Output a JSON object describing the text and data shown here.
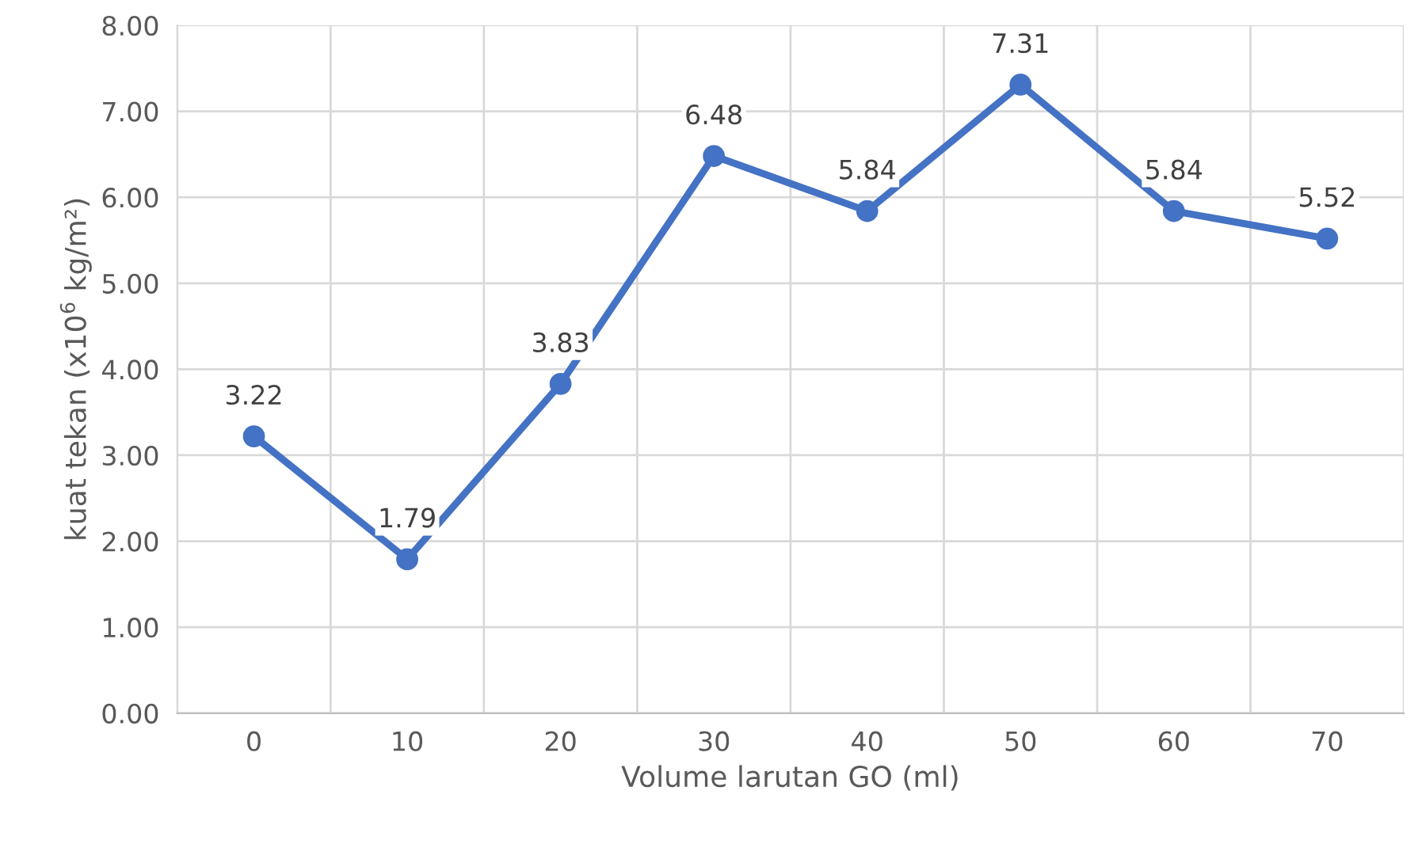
{
  "chart_data": {
    "type": "line",
    "xlabel": "Volume larutan GO (ml)",
    "ylabel": "kuat tekan (x10$^{6}$ kg/m²)",
    "categories": [
      "0",
      "10",
      "20",
      "30",
      "40",
      "50",
      "60",
      "70"
    ],
    "series": [
      {
        "color": "#4472c4",
        "values": [
          3.22,
          1.79,
          3.83,
          6.48,
          5.84,
          7.31,
          5.84,
          5.52
        ]
      }
    ],
    "ylim": [
      0,
      8
    ],
    "yticks": [
      {
        "value": 0,
        "label": "0.00"
      },
      {
        "value": 1,
        "label": "1.00"
      },
      {
        "value": 2,
        "label": "2.00"
      },
      {
        "value": 3,
        "label": "3.00"
      },
      {
        "value": 4,
        "label": "4.00"
      },
      {
        "value": 5,
        "label": "5.00"
      },
      {
        "value": 6,
        "label": "6.00"
      },
      {
        "value": 7,
        "label": "7.00"
      },
      {
        "value": 8,
        "label": "8.00"
      }
    ],
    "grid": true,
    "data_labels": true,
    "marker": "circle",
    "line_style": "solid",
    "legend": false
  }
}
